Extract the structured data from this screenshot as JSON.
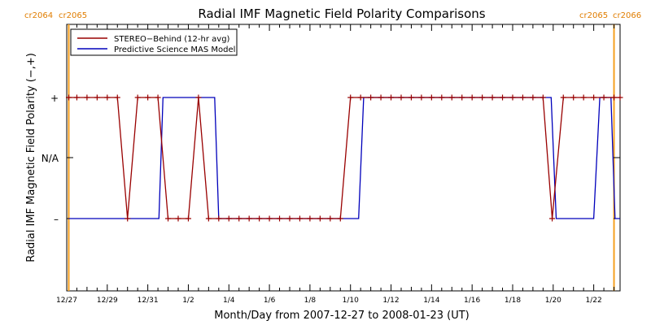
{
  "chart_data": {
    "type": "line",
    "title": "Radial IMF Magnetic Field Polarity Comparisons",
    "xlabel": "Month/Day from 2007-12-27 to 2008-01-23 (UT)",
    "ylabel": "Radial IMF Magnetic Field Polarity (−,+)",
    "x_range_days": [
      0,
      27.3
    ],
    "x_start_date": "2007-12-27",
    "y_levels": {
      "minus": -1,
      "na": 0,
      "plus": 1
    },
    "y_tick_labels": [
      "+",
      "N/A",
      "–"
    ],
    "x_ticks": [
      {
        "d": 0,
        "label": "12/27"
      },
      {
        "d": 2,
        "label": "12/29"
      },
      {
        "d": 4,
        "label": "12/31"
      },
      {
        "d": 6,
        "label": "1/2"
      },
      {
        "d": 8,
        "label": "1/4"
      },
      {
        "d": 10,
        "label": "1/6"
      },
      {
        "d": 12,
        "label": "1/8"
      },
      {
        "d": 14,
        "label": "1/10"
      },
      {
        "d": 16,
        "label": "1/12"
      },
      {
        "d": 18,
        "label": "1/14"
      },
      {
        "d": 20,
        "label": "1/16"
      },
      {
        "d": 22,
        "label": "1/18"
      },
      {
        "d": 24,
        "label": "1/20"
      },
      {
        "d": 26,
        "label": "1/22"
      }
    ],
    "carrington_markers": [
      {
        "d": 0.1,
        "left_label": "cr2064",
        "right_label": "cr2065"
      },
      {
        "d": 27.0,
        "left_label": "cr2065",
        "right_label": "cr2066"
      }
    ],
    "series": [
      {
        "name": "STEREO−Behind (12-hr avg)",
        "color": "#990000",
        "style": "line+plus-markers",
        "points": [
          [
            0.1,
            1
          ],
          [
            0.5,
            1
          ],
          [
            1,
            1
          ],
          [
            1.5,
            1
          ],
          [
            2,
            1
          ],
          [
            2.5,
            1
          ],
          [
            3.0,
            -1
          ],
          [
            3.5,
            1
          ],
          [
            4,
            1
          ],
          [
            4.5,
            1
          ],
          [
            5.0,
            -1
          ],
          [
            5.5,
            -1
          ],
          [
            6,
            -1
          ],
          [
            6.5,
            1
          ],
          [
            7.0,
            -1
          ],
          [
            7.5,
            -1
          ],
          [
            8,
            -1
          ],
          [
            8.5,
            -1
          ],
          [
            9,
            -1
          ],
          [
            9.5,
            -1
          ],
          [
            10,
            -1
          ],
          [
            10.5,
            -1
          ],
          [
            11,
            -1
          ],
          [
            11.5,
            -1
          ],
          [
            12,
            -1
          ],
          [
            12.5,
            -1
          ],
          [
            13,
            -1
          ],
          [
            13.5,
            -1
          ],
          [
            14.0,
            1
          ],
          [
            14.5,
            1
          ],
          [
            15,
            1
          ],
          [
            15.5,
            1
          ],
          [
            16,
            1
          ],
          [
            16.5,
            1
          ],
          [
            17,
            1
          ],
          [
            17.5,
            1
          ],
          [
            18,
            1
          ],
          [
            18.5,
            1
          ],
          [
            19,
            1
          ],
          [
            19.5,
            1
          ],
          [
            20,
            1
          ],
          [
            20.5,
            1
          ],
          [
            21,
            1
          ],
          [
            21.5,
            1
          ],
          [
            22,
            1
          ],
          [
            22.5,
            1
          ],
          [
            23,
            1
          ],
          [
            23.5,
            1
          ],
          [
            23.95,
            -1
          ],
          [
            24.5,
            1
          ],
          [
            25,
            1
          ],
          [
            25.5,
            1
          ],
          [
            26,
            1
          ],
          [
            26.5,
            1
          ],
          [
            27,
            1
          ],
          [
            27.3,
            1
          ]
        ]
      },
      {
        "name": "Predictive Science MAS Model",
        "color": "#0000bb",
        "style": "step",
        "points": [
          [
            0.1,
            -1
          ],
          [
            4.55,
            -1
          ],
          [
            4.75,
            1
          ],
          [
            7.3,
            1
          ],
          [
            7.5,
            -1
          ],
          [
            14.4,
            -1
          ],
          [
            14.65,
            1
          ],
          [
            23.9,
            1
          ],
          [
            24.15,
            -1
          ],
          [
            26.0,
            -1
          ],
          [
            26.3,
            1
          ],
          [
            26.85,
            1
          ],
          [
            27.05,
            -1
          ],
          [
            27.3,
            -1
          ]
        ]
      }
    ],
    "grid": false,
    "legend_position": "top-left"
  }
}
